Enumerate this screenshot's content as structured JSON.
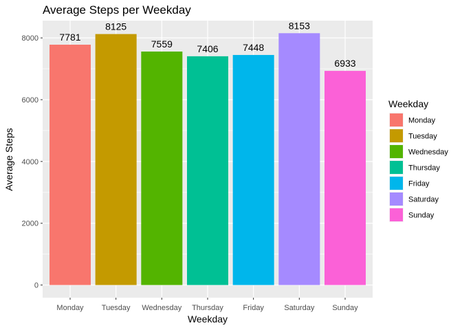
{
  "chart_data": {
    "type": "bar",
    "title": "Average Steps per Weekday",
    "xlabel": "Weekday",
    "ylabel": "Average Steps",
    "categories": [
      "Monday",
      "Tuesday",
      "Wednesday",
      "Thursday",
      "Friday",
      "Saturday",
      "Sunday"
    ],
    "values": [
      7781,
      8125,
      7559,
      7406,
      7448,
      8153,
      6933
    ],
    "data_labels": [
      "7781",
      "8125",
      "7559",
      "7406",
      "7448",
      "8153",
      "6933"
    ],
    "colors": [
      "#F8766D",
      "#C49A00",
      "#53B400",
      "#00C094",
      "#00B6EB",
      "#A58AFF",
      "#FB61D7"
    ],
    "yticks": [
      0,
      2000,
      4000,
      6000,
      8000
    ],
    "ylim": [
      -410,
      8560
    ],
    "grid": true,
    "panel_background": "#EBEBEB",
    "legend": {
      "title": "Weekday",
      "placement": "right",
      "items": [
        "Monday",
        "Tuesday",
        "Wednesday",
        "Thursday",
        "Friday",
        "Saturday",
        "Sunday"
      ]
    }
  }
}
